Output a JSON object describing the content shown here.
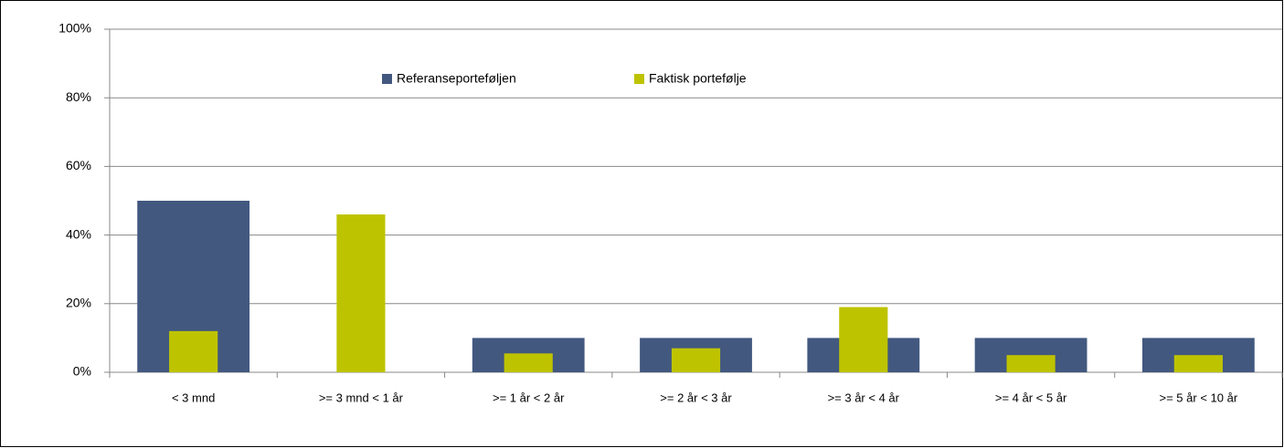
{
  "chart_data": {
    "type": "bar",
    "categories": [
      "< 3 mnd",
      ">= 3 mnd < 1 år",
      ">= 1 år < 2 år",
      ">= 2 år < 3 år",
      ">= 3 år < 4 år",
      ">= 4 år < 5 år",
      ">= 5 år < 10 år"
    ],
    "series": [
      {
        "name": "Referanseporteføljen",
        "color": "#42587f",
        "values": [
          50,
          0,
          10,
          10,
          10,
          10,
          10
        ]
      },
      {
        "name": "Faktisk portefølje",
        "color": "#bec300",
        "values": [
          12,
          46,
          5.5,
          7,
          19,
          5,
          5
        ]
      }
    ],
    "ylim": [
      0,
      100
    ],
    "yticks": [
      {
        "value": 0,
        "label": "0%"
      },
      {
        "value": 20,
        "label": "20%"
      },
      {
        "value": 40,
        "label": "40%"
      },
      {
        "value": 60,
        "label": "60%"
      },
      {
        "value": 80,
        "label": "80%"
      },
      {
        "value": 100,
        "label": "100%"
      }
    ],
    "grid": true,
    "legend": "top"
  }
}
